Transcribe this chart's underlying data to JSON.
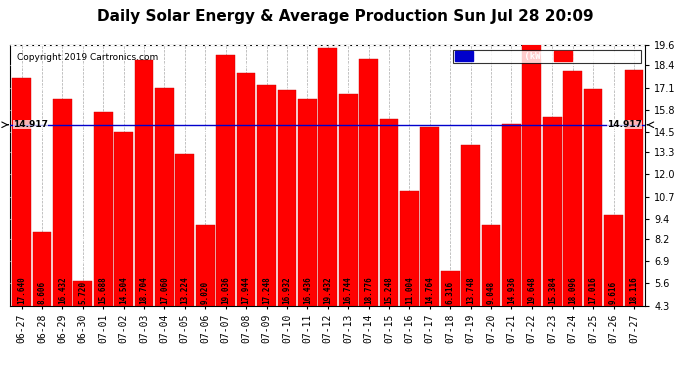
{
  "title": "Daily Solar Energy & Average Production Sun Jul 28 20:09",
  "copyright": "Copyright 2019 Cartronics.com",
  "categories": [
    "06-27",
    "06-28",
    "06-29",
    "06-30",
    "07-01",
    "07-02",
    "07-03",
    "07-04",
    "07-05",
    "07-06",
    "07-07",
    "07-08",
    "07-09",
    "07-10",
    "07-11",
    "07-12",
    "07-13",
    "07-14",
    "07-15",
    "07-16",
    "07-17",
    "07-18",
    "07-19",
    "07-20",
    "07-21",
    "07-22",
    "07-23",
    "07-24",
    "07-25",
    "07-26",
    "07-27"
  ],
  "values": [
    17.64,
    8.606,
    16.432,
    5.72,
    15.688,
    14.504,
    18.704,
    17.06,
    13.224,
    9.02,
    19.036,
    17.944,
    17.248,
    16.932,
    16.436,
    19.432,
    16.744,
    18.776,
    15.248,
    11.004,
    14.764,
    6.316,
    13.748,
    9.048,
    14.936,
    19.648,
    15.384,
    18.096,
    17.016,
    9.616,
    18.116
  ],
  "average": 14.917,
  "bar_color": "#ff0000",
  "average_line_color": "#0000cc",
  "background_color": "#ffffff",
  "plot_bg_color": "#ffffff",
  "grid_color": "#ffffff",
  "yticks": [
    4.3,
    5.6,
    6.9,
    8.2,
    9.4,
    10.7,
    12.0,
    13.3,
    14.5,
    15.8,
    17.1,
    18.4,
    19.6
  ],
  "ylim": [
    4.3,
    19.6
  ],
  "average_label": "14.917",
  "legend_avg_color": "#0000cc",
  "legend_daily_color": "#ff0000",
  "title_fontsize": 11,
  "copyright_fontsize": 6.5,
  "bar_value_fontsize": 5.5,
  "tick_fontsize": 7,
  "avg_annotation_fontsize": 6.5,
  "dpi": 100,
  "figsize": [
    6.9,
    3.75
  ]
}
